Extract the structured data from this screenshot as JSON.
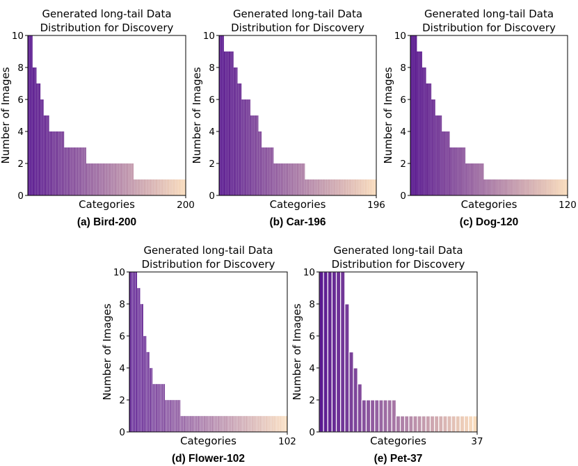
{
  "figure": {
    "title_line1": "Generated long-tail Data",
    "title_line2": "Distribution for Discovery",
    "xlabel": "Categories",
    "ylabel": "Number of Images"
  },
  "chart_data": [
    {
      "type": "bar",
      "caption": "(a) Bird-200",
      "n_categories": 200,
      "x_end_label": "200",
      "ylim": [
        0,
        10
      ],
      "yticks": [
        0,
        2,
        4,
        6,
        8,
        10
      ],
      "segments": [
        {
          "value": 10,
          "count": 6
        },
        {
          "value": 8,
          "count": 5
        },
        {
          "value": 7,
          "count": 5
        },
        {
          "value": 6,
          "count": 4
        },
        {
          "value": 5,
          "count": 7
        },
        {
          "value": 4,
          "count": 19
        },
        {
          "value": 3,
          "count": 28
        },
        {
          "value": 2,
          "count": 60
        },
        {
          "value": 1,
          "count": 66
        }
      ],
      "color_start": "#5b1b91",
      "color_end": "#f9dcbc"
    },
    {
      "type": "bar",
      "caption": "(b) Car-196",
      "n_categories": 196,
      "x_end_label": "196",
      "ylim": [
        0,
        10
      ],
      "yticks": [
        0,
        2,
        4,
        6,
        8,
        10
      ],
      "segments": [
        {
          "value": 10,
          "count": 6
        },
        {
          "value": 9,
          "count": 12
        },
        {
          "value": 8,
          "count": 5
        },
        {
          "value": 7,
          "count": 5
        },
        {
          "value": 6,
          "count": 11
        },
        {
          "value": 5,
          "count": 10
        },
        {
          "value": 4,
          "count": 4
        },
        {
          "value": 3,
          "count": 15
        },
        {
          "value": 2,
          "count": 39
        },
        {
          "value": 1,
          "count": 89
        }
      ],
      "color_start": "#5b1b91",
      "color_end": "#f9dcbc"
    },
    {
      "type": "bar",
      "caption": "(c) Dog-120",
      "n_categories": 120,
      "x_end_label": "120",
      "ylim": [
        0,
        10
      ],
      "yticks": [
        0,
        2,
        4,
        6,
        8,
        10
      ],
      "segments": [
        {
          "value": 10,
          "count": 5
        },
        {
          "value": 9,
          "count": 4
        },
        {
          "value": 8,
          "count": 3
        },
        {
          "value": 7,
          "count": 4
        },
        {
          "value": 6,
          "count": 3
        },
        {
          "value": 5,
          "count": 5
        },
        {
          "value": 4,
          "count": 6
        },
        {
          "value": 3,
          "count": 12
        },
        {
          "value": 2,
          "count": 14
        },
        {
          "value": 1,
          "count": 64
        }
      ],
      "color_start": "#5b1b91",
      "color_end": "#f9dcbc"
    },
    {
      "type": "bar",
      "caption": "(d) Flower-102",
      "n_categories": 102,
      "x_end_label": "102",
      "ylim": [
        0,
        10
      ],
      "yticks": [
        0,
        2,
        4,
        6,
        8,
        10
      ],
      "segments": [
        {
          "value": 10,
          "count": 5
        },
        {
          "value": 9,
          "count": 2
        },
        {
          "value": 8,
          "count": 2
        },
        {
          "value": 6,
          "count": 2
        },
        {
          "value": 5,
          "count": 2
        },
        {
          "value": 4,
          "count": 2
        },
        {
          "value": 3,
          "count": 8
        },
        {
          "value": 2,
          "count": 10
        },
        {
          "value": 1,
          "count": 69
        }
      ],
      "color_start": "#5b1b91",
      "color_end": "#f9dcbc"
    },
    {
      "type": "bar",
      "caption": "(e) Pet-37",
      "n_categories": 37,
      "x_end_label": "37",
      "ylim": [
        0,
        10
      ],
      "yticks": [
        0,
        2,
        4,
        6,
        8,
        10
      ],
      "segments": [
        {
          "value": 10,
          "count": 6
        },
        {
          "value": 8,
          "count": 1
        },
        {
          "value": 5,
          "count": 1
        },
        {
          "value": 4,
          "count": 1
        },
        {
          "value": 3,
          "count": 1
        },
        {
          "value": 2,
          "count": 8
        },
        {
          "value": 1,
          "count": 19
        }
      ],
      "color_start": "#5b1b91",
      "color_end": "#f9dcbc"
    }
  ]
}
